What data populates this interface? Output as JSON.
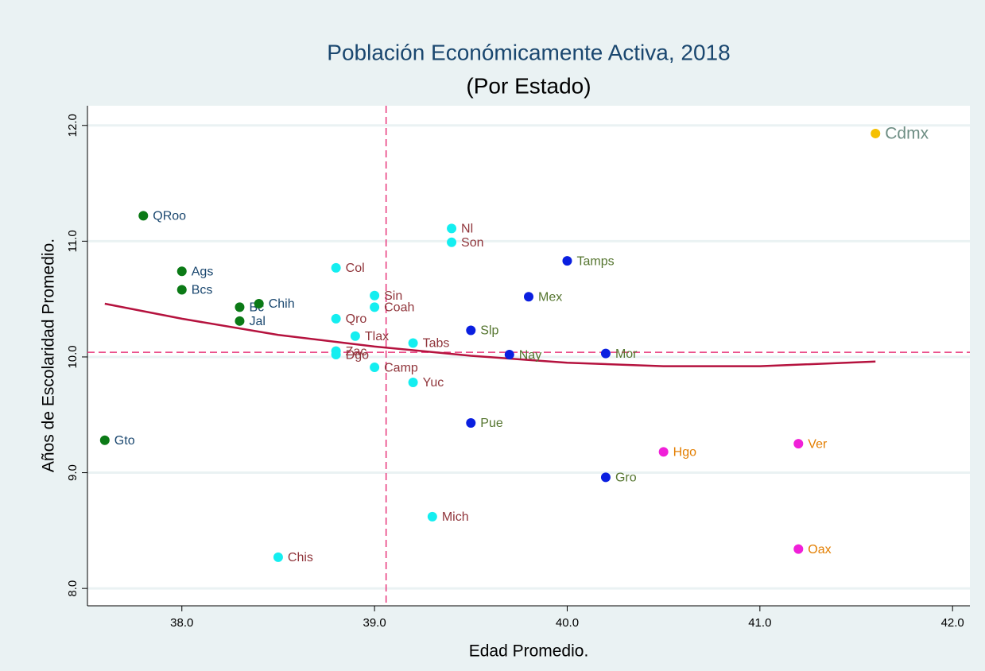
{
  "chart_data": {
    "type": "scatter",
    "title": "Población Económicamente Activa, 2018",
    "subtitle": "(Por Estado)",
    "xlabel": "Edad Promedio.",
    "ylabel": "Años de Escolaridad Promedio.",
    "xlim": [
      37.51,
      42.09
    ],
    "ylim": [
      7.85,
      12.17
    ],
    "xticks": [
      {
        "value": 38,
        "label": "38.0"
      },
      {
        "value": 39,
        "label": "39.0"
      },
      {
        "value": 40,
        "label": "40.0"
      },
      {
        "value": 41,
        "label": "41.0"
      },
      {
        "value": 42,
        "label": "42.0"
      }
    ],
    "yticks": [
      {
        "value": 8,
        "label": "8.0"
      },
      {
        "value": 9,
        "label": "9.0"
      },
      {
        "value": 10,
        "label": "10.0"
      },
      {
        "value": 11,
        "label": "11.0"
      },
      {
        "value": 12,
        "label": "12.0"
      }
    ],
    "grid": true,
    "xline": 39.06,
    "yline": 10.04,
    "refline_color": "#e8357a",
    "series": [
      {
        "color": "#0b7a16",
        "label_color": "#1a476f",
        "label_size": 16,
        "labels": [
          "QRoo",
          "Ags",
          "Bcs",
          "Bc",
          "Chih",
          "Jal",
          "Gto"
        ],
        "x": [
          37.8,
          38.0,
          38.0,
          38.3,
          38.4,
          38.3,
          37.6
        ],
        "y": [
          11.22,
          10.74,
          10.58,
          10.43,
          10.46,
          10.31,
          9.28
        ]
      },
      {
        "color": "#14eef0",
        "label_color": "#90353b",
        "label_size": 16,
        "labels": [
          "Col",
          "Sin",
          "Coah",
          "Qro",
          "Tlax",
          "Zac",
          "Dgo",
          "Camp",
          "Tabs",
          "Yuc",
          "Nl",
          "Son",
          "Mich",
          "Chis"
        ],
        "x": [
          38.8,
          39.0,
          39.0,
          38.8,
          38.9,
          38.8,
          38.8,
          39.0,
          39.2,
          39.2,
          39.4,
          39.4,
          39.3,
          38.5
        ],
        "y": [
          10.77,
          10.53,
          10.43,
          10.33,
          10.18,
          10.05,
          10.02,
          9.91,
          10.12,
          9.78,
          11.11,
          10.99,
          8.62,
          8.27
        ]
      },
      {
        "color": "#0a1fe0",
        "label_color": "#55752f",
        "label_size": 16,
        "labels": [
          "Slp",
          "Tamps",
          "Mex",
          "Nay",
          "Mor",
          "Pue",
          "Gro"
        ],
        "x": [
          39.5,
          40.0,
          39.8,
          39.7,
          40.2,
          39.5,
          40.2
        ],
        "y": [
          10.23,
          10.83,
          10.52,
          10.02,
          10.03,
          9.43,
          8.96
        ]
      },
      {
        "color": "#f020d8",
        "label_color": "#e37e00",
        "label_size": 16,
        "labels": [
          "Hgo",
          "Ver",
          "Oax"
        ],
        "x": [
          40.5,
          41.2,
          41.2
        ],
        "y": [
          9.18,
          9.25,
          8.34
        ]
      },
      {
        "color": "#f5c000",
        "label_color": "#6e8e84",
        "label_size": 21,
        "labels": [
          "Cdmx"
        ],
        "x": [
          41.6
        ],
        "y": [
          11.93
        ]
      }
    ],
    "fit_line": {
      "color": "#b5123e",
      "x": [
        37.6,
        38.0,
        38.5,
        39.0,
        39.5,
        40.0,
        40.5,
        41.0,
        41.6
      ],
      "y": [
        10.46,
        10.33,
        10.19,
        10.09,
        10.01,
        9.95,
        9.92,
        9.92,
        9.96
      ]
    }
  }
}
